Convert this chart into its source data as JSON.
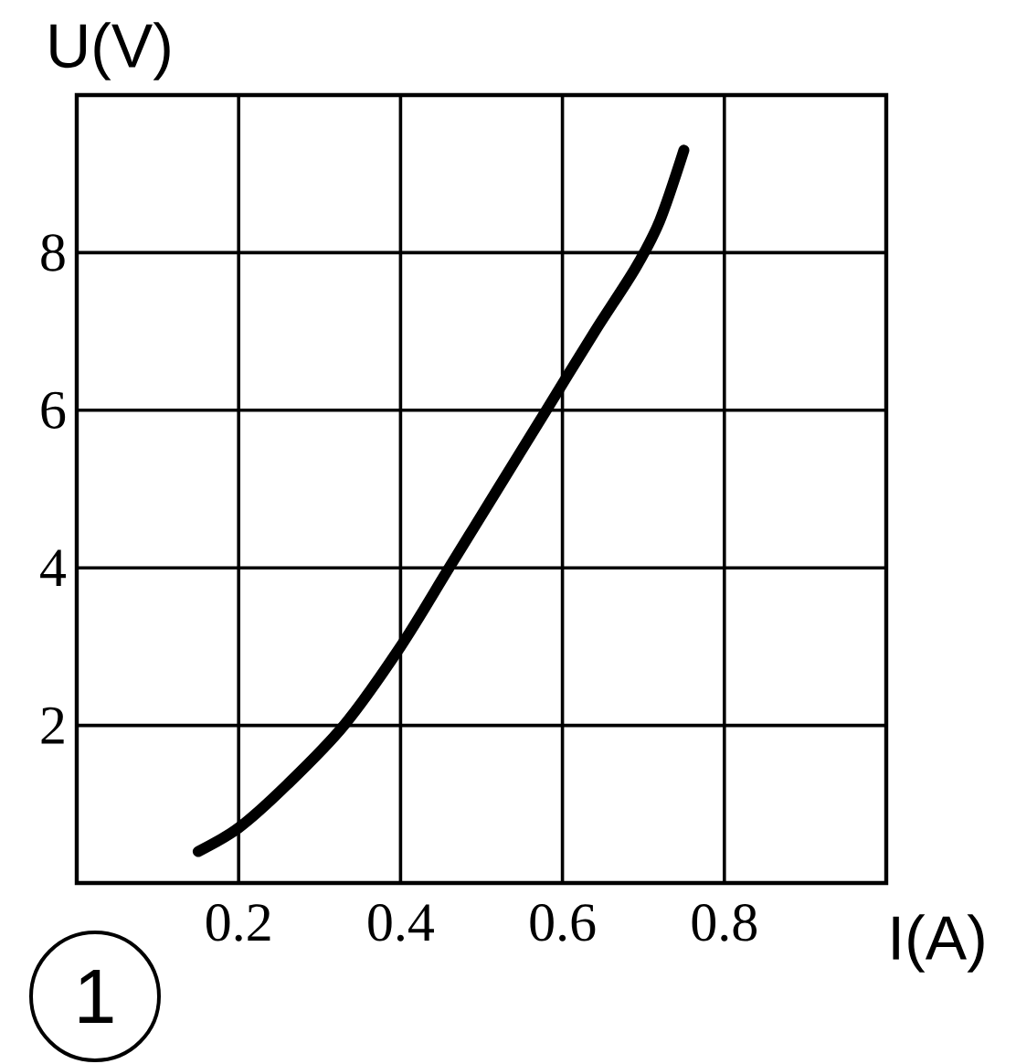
{
  "chart_data": {
    "type": "line",
    "xlabel": "I(A)",
    "ylabel": "U(V)",
    "x": [
      0.15,
      0.2,
      0.26,
      0.33,
      0.4,
      0.46,
      0.52,
      0.58,
      0.64,
      0.69,
      0.72,
      0.75
    ],
    "values": [
      0.4,
      0.7,
      1.25,
      2.0,
      3.0,
      4.0,
      5.0,
      6.0,
      7.0,
      7.8,
      8.4,
      9.3
    ],
    "color": "#000000",
    "line_style": "solid",
    "xlim": [
      0,
      1
    ],
    "ylim": [
      0,
      10
    ],
    "xticks": [
      0.2,
      0.4,
      0.6,
      0.8
    ],
    "yticks": [
      2,
      4,
      6,
      8
    ],
    "grid": true,
    "annotations": [
      "1"
    ]
  }
}
